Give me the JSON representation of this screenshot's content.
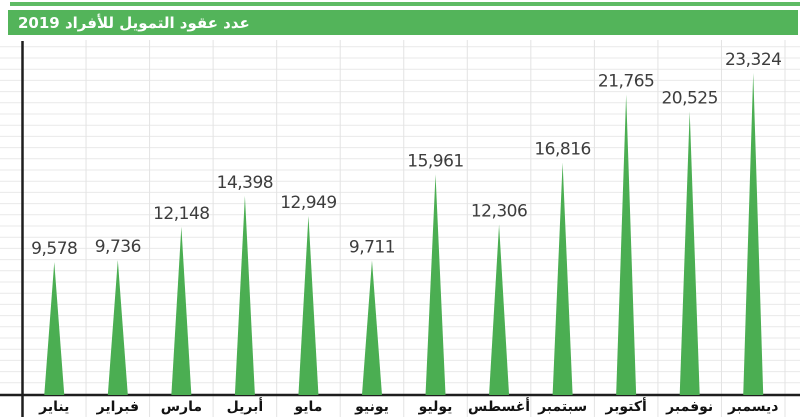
{
  "title": "عدد عقود التمويل للأفراد 2019",
  "colors": {
    "spike_green": "#4bae52",
    "title_bar_green": "#53b45a",
    "top_strip_green": "#5fbb64",
    "grid_horizontal": "#e9e9e9",
    "grid_vertical": "#e3e3e3",
    "axis": "#1e1e1e",
    "value_text": "#3d3d3d",
    "month_text": "#121212",
    "title_text": "#ffffff"
  },
  "chart_data": {
    "type": "bar",
    "shape": "triangle-spike",
    "title": "عدد عقود التمويل للأفراد 2019",
    "xlabel": "",
    "ylabel": "",
    "ylim": [
      0,
      24000
    ],
    "grid": true,
    "legend": "none",
    "categories": [
      "يناير",
      "فبراير",
      "مارس",
      "أبريل",
      "مايو",
      "يونيو",
      "يوليو",
      "أغسطس",
      "سبتمبر",
      "أكتوبر",
      "نوفمبر",
      "ديسمبر"
    ],
    "values": [
      9578,
      9736,
      12148,
      14398,
      12949,
      9711,
      15961,
      12306,
      16816,
      21765,
      20525,
      23324
    ],
    "value_labels": [
      "9,578",
      "9,736",
      "12,148",
      "14,398",
      "12,949",
      "9,711",
      "15,961",
      "12,306",
      "16,816",
      "21,765",
      "20,525",
      "23,324"
    ]
  }
}
